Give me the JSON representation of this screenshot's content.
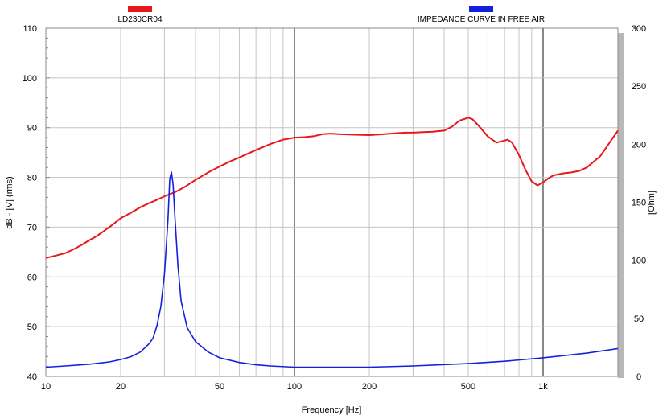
{
  "chart_data": {
    "type": "line",
    "x_scale": "log",
    "xlim": [
      10,
      2000
    ],
    "ylim": [
      40,
      110
    ],
    "y2lim": [
      0,
      300
    ],
    "xlabel": "Frequency [Hz]",
    "ylabel": "dB - [V]  (rms)",
    "y2label": "[Ohm]",
    "x_ticks": [
      {
        "value": 10,
        "label": "10"
      },
      {
        "value": 20,
        "label": "20"
      },
      {
        "value": 50,
        "label": "50"
      },
      {
        "value": 100,
        "label": "100"
      },
      {
        "value": 200,
        "label": "200"
      },
      {
        "value": 500,
        "label": "500"
      },
      {
        "value": 1000,
        "label": "1k"
      }
    ],
    "y_ticks": [
      "40",
      "50",
      "60",
      "70",
      "80",
      "90",
      "100",
      "110"
    ],
    "y2_ticks": [
      "0",
      "50",
      "100",
      "150",
      "200",
      "250",
      "300"
    ],
    "grid": true,
    "legend_position": "top",
    "colors": {
      "spl": "#e8181a",
      "impedance": "#1420e0",
      "grid": "#c4c4c4",
      "major_grid": "#888888",
      "frame_shadow": "#b8b8b8"
    },
    "series": [
      {
        "name": "LD230CR04",
        "axis": "left",
        "unit": "dB",
        "x": [
          10,
          11,
          12,
          13,
          14,
          15,
          16,
          17,
          18,
          19,
          20,
          22,
          24,
          26,
          28,
          30,
          33,
          36,
          40,
          45,
          50,
          55,
          60,
          70,
          80,
          90,
          100,
          110,
          120,
          130,
          140,
          150,
          170,
          200,
          230,
          260,
          280,
          300,
          330,
          360,
          400,
          430,
          460,
          500,
          520,
          550,
          600,
          650,
          700,
          720,
          750,
          800,
          850,
          900,
          950,
          1000,
          1050,
          1100,
          1200,
          1300,
          1400,
          1500,
          1700,
          2000
        ],
        "values": [
          63.8,
          64.3,
          64.8,
          65.6,
          66.5,
          67.4,
          68.2,
          69.1,
          70.0,
          70.9,
          71.8,
          72.9,
          74.0,
          74.8,
          75.5,
          76.2,
          77.0,
          78.0,
          79.5,
          81.0,
          82.2,
          83.2,
          84.0,
          85.5,
          86.7,
          87.6,
          88.0,
          88.1,
          88.3,
          88.7,
          88.8,
          88.7,
          88.6,
          88.5,
          88.7,
          88.9,
          89.0,
          89.0,
          89.1,
          89.2,
          89.4,
          90.2,
          91.4,
          92.0,
          91.7,
          90.4,
          88.2,
          87.0,
          87.4,
          87.6,
          87.0,
          84.5,
          81.5,
          79.2,
          78.4,
          79.0,
          79.8,
          80.4,
          80.8,
          81.0,
          81.3,
          82.0,
          84.3,
          89.4
        ]
      },
      {
        "name": "IMPEDANCE CURVE IN FREE AIR",
        "axis": "right",
        "unit": "Ohm",
        "x": [
          10,
          12,
          15,
          18,
          20,
          22,
          24,
          26,
          27,
          28,
          29,
          30,
          31,
          31.5,
          32,
          32.5,
          33,
          34,
          35,
          37,
          40,
          45,
          50,
          60,
          70,
          80,
          100,
          150,
          200,
          300,
          500,
          700,
          1000,
          1500,
          2000
        ],
        "values": [
          8,
          9,
          10.5,
          12.5,
          14.5,
          17,
          21,
          28,
          33,
          44,
          60,
          88,
          135,
          170,
          176,
          165,
          140,
          95,
          65,
          42,
          30,
          21,
          16,
          12,
          10,
          9,
          8,
          8,
          8,
          9,
          11,
          13,
          16,
          20,
          24
        ]
      }
    ]
  }
}
